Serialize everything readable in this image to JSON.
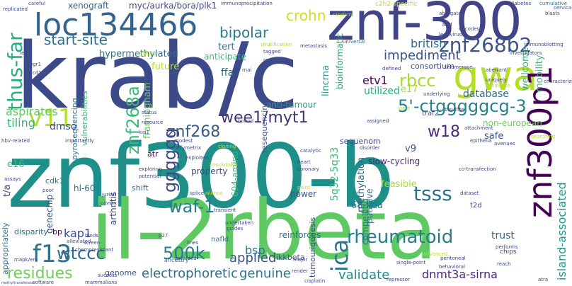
{
  "words": {
    "krab": "krab/c",
    "znf300b": "znf300-b",
    "il2rbeta": "il-2rbeta",
    "znf300": "znf-300",
    "loc": "loc134466",
    "gwa": "gwa",
    "znf300p1": "znf300p1",
    "znf268b2": "znf268b2",
    "crohn": "crohn",
    "bipolar": "bipolar",
    "thusfar": "thus-far",
    "startsite": "start-site",
    "v11": "v11",
    "znf268a": "znf268a",
    "f13": "f13",
    "residues": "residues",
    "wtccc": "wtccc",
    "500k": "500k",
    "rheumatoid": "rheumatoid",
    "tsss": "tsss",
    "waf1": "waf-1",
    "ica": "ica",
    "w18": "w18",
    "wee1": "wee1/myt1",
    "ctg": "5'-ctgggggcg-3",
    "znf268": "znf268",
    "rbcc": "rbcc",
    "etv1": "etv1",
    "impediment": "impediment",
    "british": "british",
    "islandassoc": "island-associated",
    "gggggg": "gggggg",
    "applied": "applied",
    "electrophoretic": "electrophoretic",
    "genuine": "genuine",
    "dnmt3a": "dnmt3a-sirna",
    "validate": "validate",
    "kap1": "kap1",
    "bsp": "bsp",
    "myc": "myc/aurka/bora/plk1",
    "xenograft": "xenograft",
    "hypermethylated": "hypermethylated",
    "tert": "tert",
    "anticipate": "anticipate",
    "future": "future",
    "aspirates": "aspirates",
    "tiling": "tiling",
    "dmso": "dmso",
    "ffa": "ffa",
    "framingham": "framingham",
    "lincrna": "lincrna",
    "bioinformatic": "bioinformatic",
    "utilized": "utilized",
    "database": "database",
    "wellcome": "wellcome",
    "mobility": "mobility",
    "consortium": "consortium",
    "e17": "e17",
    "antitumour": "anti-tumour",
    "sequenom": "sequenom",
    "nonEuropean": "non-european",
    "safe": "safe",
    "slowcycling": "slow-cycling",
    "v9": "v9",
    "5q32": "5q32-5q33",
    "68kda": "68-kda",
    "trust": "trust",
    "putative": "putative",
    "methylation": "methylation",
    "power": "power",
    "feasible": "feasible",
    "property": "property",
    "arthritis": "arthritis",
    "genechip": "genechip",
    "shift": "shift",
    "604amino": "604-amino",
    "ikkbeta": "ikkbeta",
    "reinforces": "reinforces",
    "tumourigenesis": "tumourigenesis",
    "e16": "e16",
    "hl60": "hl-60",
    "ta": "t/a",
    "disparity": "disparity",
    "bp": "bp",
    "appropriately": "appropriately",
    "genome": "genome",
    "ancestry": "ancestry",
    "compelling": "compelling",
    "cdk1": "cdk1",
    "pyrosequencing": "pyrosequencing",
    "vulnerabilities": "vulnerabilities",
    "atr": "atr",
    "resequencing": "resequencing",
    "traf2": "traf2",
    "t2d": "t2d",
    "nafld": "nafld",
    "chips": "chips",
    "c2h2": "c2h2-specific",
    "immunoprecipitation": "immunoprecipitation",
    "diabetes": "diabetes",
    "cumulative": "cumulative",
    "careful": "careful",
    "replicated": "replicated",
    "metastasis": "metastasis",
    "universal": "universal",
    "tagged": "tagged",
    "represent": "represent",
    "rnai": "rnai",
    "abrogated": "abrogated",
    "encodes": "encodes",
    "acid": "acid",
    "lentivirus": "lentivirus",
    "aberrant": "aberrant",
    "telomerase": "telomerase",
    "uniquely": "uniquely",
    "candidate": "candidate",
    "bisulfite": "bisulfite",
    "yield": "yield",
    "assigned": "assigned",
    "bound": "bound",
    "resource": "resource",
    "status": "status",
    "kip1": "kip1",
    "modest": "modest",
    "affymetrix": "affymetrix",
    "cloning": "cloning",
    "exploited": "exploited",
    "knockdown": "knockdown",
    "exploring": "exploring",
    "potential": "potential",
    "jurkat": "jurkat",
    "cavsty": "cavsty",
    "assays": "assays",
    "poor": "poor",
    "egr1": "egr1",
    "cd11b": "cd11b",
    "hbvrelated": "hbv-related",
    "importantly": "importantly",
    "heart": "heart",
    "coronary": "coronary",
    "disorder": "disorder",
    "epithelia": "epithelia",
    "avenues": "avenues",
    "attachment": "attachment",
    "searching": "searching",
    "cotransfection": "co-transfection",
    "dataset": "dataset",
    "peritoneal": "peritoneal",
    "behavioral": "behavioral",
    "singlepoint": "single-point",
    "reach": "reach",
    "performs": "performs",
    "atra": "atra",
    "repressor": "repressor",
    "render": "render",
    "major": "major",
    "cisplatin": "cisplatin",
    "success": "success",
    "mammalians": "mammalians",
    "software": "software",
    "mapkerk": "mapk/erk",
    "alleviated": "alleviated",
    "screen": "screen",
    "binds": "binds",
    "chemoresistant": "chemoresistant",
    "guides": "guides",
    "undertaken": "undertaken",
    "transient": "transient",
    "excluded": "excluded",
    "splice": "splice",
    "silence": "silence",
    "catalytic": "catalytic",
    "point": "point",
    "advanced": "advanced",
    "characterizing": "characterizing",
    "investigators": "investigators",
    "immunoblotting": "immunoblotting",
    "blasts": "blasts",
    "cervical": "cervical",
    "defined": "defined",
    "underlying": "underlying",
    "random": "random",
    "stratification": "stratification",
    "ranking": "ranking",
    "led": "led",
    "p27": "p27",
    "methyltransferase": "methyltransferase",
    "lines": "lines"
  }
}
